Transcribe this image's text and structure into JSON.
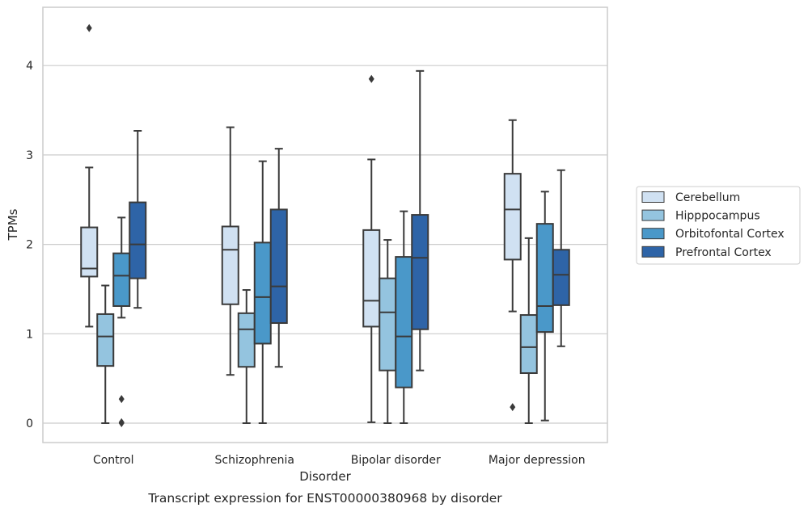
{
  "chart_data": {
    "type": "box",
    "title": "",
    "caption": "Transcript expression for ENST00000380968 by disorder",
    "xlabel": "Disorder",
    "ylabel": "TPMs",
    "ylim": [
      -0.22,
      4.65
    ],
    "yticks": [
      "0",
      "1",
      "2",
      "3",
      "4"
    ],
    "categories": [
      "Control",
      "Schizophrenia",
      "Bipolar disorder",
      "Major depression"
    ],
    "grid": "horizontal",
    "legend_position": "center-right",
    "series": [
      {
        "name": "Cerebellum",
        "color": "#d0e1f2",
        "boxes": [
          {
            "min": 1.08,
            "q1": 1.64,
            "median": 1.73,
            "q3": 2.19,
            "max": 2.86,
            "outliers": [
              4.42
            ]
          },
          {
            "min": 0.54,
            "q1": 1.33,
            "median": 1.94,
            "q3": 2.2,
            "max": 3.31,
            "outliers": []
          },
          {
            "min": 0.01,
            "q1": 1.08,
            "median": 1.37,
            "q3": 2.16,
            "max": 2.95,
            "outliers": [
              3.85
            ]
          },
          {
            "min": 1.25,
            "q1": 1.83,
            "median": 2.39,
            "q3": 2.79,
            "max": 3.39,
            "outliers": [
              0.18
            ]
          }
        ]
      },
      {
        "name": "Hipppocampus",
        "color": "#94c4df",
        "boxes": [
          {
            "min": 0.0,
            "q1": 0.64,
            "median": 0.97,
            "q3": 1.22,
            "max": 1.54,
            "outliers": []
          },
          {
            "min": 0.0,
            "q1": 0.63,
            "median": 1.05,
            "q3": 1.23,
            "max": 1.49,
            "outliers": []
          },
          {
            "min": 0.0,
            "q1": 0.59,
            "median": 1.24,
            "q3": 1.62,
            "max": 2.05,
            "outliers": []
          },
          {
            "min": 0.0,
            "q1": 0.56,
            "median": 0.85,
            "q3": 1.21,
            "max": 2.07,
            "outliers": []
          }
        ]
      },
      {
        "name": "Orbitofontal Cortex",
        "color": "#4a98c9",
        "boxes": [
          {
            "min": 1.18,
            "q1": 1.31,
            "median": 1.65,
            "q3": 1.9,
            "max": 2.3,
            "outliers": [
              0.27,
              0.01,
              0.0
            ]
          },
          {
            "min": 0.0,
            "q1": 0.89,
            "median": 1.41,
            "q3": 2.02,
            "max": 2.93,
            "outliers": []
          },
          {
            "min": 0.0,
            "q1": 0.4,
            "median": 0.97,
            "q3": 1.86,
            "max": 2.37,
            "outliers": []
          },
          {
            "min": 0.03,
            "q1": 1.02,
            "median": 1.31,
            "q3": 2.23,
            "max": 2.59,
            "outliers": []
          }
        ]
      },
      {
        "name": "Prefrontal Cortex",
        "color": "#2e64a7",
        "boxes": [
          {
            "min": 1.29,
            "q1": 1.62,
            "median": 2.0,
            "q3": 2.47,
            "max": 3.27,
            "outliers": []
          },
          {
            "min": 0.63,
            "q1": 1.12,
            "median": 1.53,
            "q3": 2.39,
            "max": 3.07,
            "outliers": []
          },
          {
            "min": 0.59,
            "q1": 1.05,
            "median": 1.85,
            "q3": 2.33,
            "max": 3.94,
            "outliers": []
          },
          {
            "min": 0.86,
            "q1": 1.32,
            "median": 1.66,
            "q3": 1.94,
            "max": 2.83,
            "outliers": []
          }
        ]
      }
    ]
  }
}
